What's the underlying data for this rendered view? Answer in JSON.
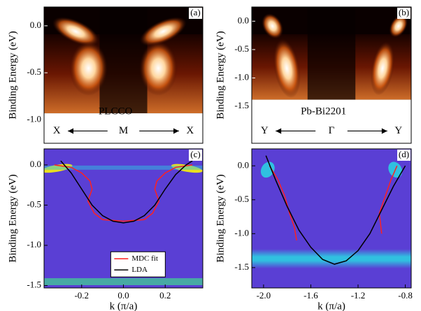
{
  "chart_data": [
    {
      "type": "heatmap",
      "panel_label": "(a)",
      "sample": "PLCCO",
      "ylabel": "Binding Energy (eV)",
      "symmetry_labels": [
        "X",
        "M",
        "X"
      ],
      "ylim": [
        -1.25,
        0.2
      ],
      "yticks": [
        {
          "value": 0,
          "label": "0.0"
        },
        -0.5,
        {
          "value": -1,
          "label": "-1.0"
        }
      ]
    },
    {
      "type": "heatmap",
      "panel_label": "(b)",
      "sample": "Pb-Bi2201",
      "ylabel": "Binding Energy (eV)",
      "symmetry_labels": [
        "Y",
        "Γ",
        "Y"
      ],
      "ylim": [
        -2.15,
        0.25
      ],
      "yticks": [
        {
          "value": 0,
          "label": "0.0"
        },
        -0.5,
        {
          "value": -1,
          "label": "-1.0"
        },
        -1.5
      ]
    },
    {
      "type": "line",
      "panel_label": "(c)",
      "ylabel": "Binding Energy (eV)",
      "xlabel": "k (π/a)",
      "xlim": [
        -0.38,
        0.38
      ],
      "xticks": [
        -0.2,
        {
          "value": 0,
          "label": "0.0"
        },
        0.2
      ],
      "ylim": [
        -1.53,
        0.2
      ],
      "yticks": [
        {
          "value": 0,
          "label": "0.0"
        },
        -0.5,
        {
          "value": -1,
          "label": "-1.0"
        },
        -1.5
      ],
      "series": [
        {
          "name": "MDC fit",
          "color": "#ff2020",
          "x": [
            -0.33,
            -0.25,
            -0.2,
            -0.16,
            -0.15,
            -0.17,
            -0.14,
            -0.1,
            0,
            0.1,
            0.14,
            0.17,
            0.15,
            0.16,
            0.2,
            0.25,
            0.33
          ],
          "values": [
            0.0,
            -0.03,
            -0.1,
            -0.2,
            -0.3,
            -0.45,
            -0.6,
            -0.68,
            -0.7,
            -0.68,
            -0.6,
            -0.45,
            -0.3,
            -0.2,
            -0.1,
            -0.03,
            0.0
          ]
        },
        {
          "name": "LDA",
          "color": "#000000",
          "x": [
            -0.3,
            -0.25,
            -0.2,
            -0.15,
            -0.1,
            -0.05,
            0,
            0.05,
            0.1,
            0.15,
            0.2,
            0.25,
            0.3,
            0.33
          ],
          "values": [
            0.05,
            -0.1,
            -0.3,
            -0.5,
            -0.63,
            -0.7,
            -0.72,
            -0.7,
            -0.63,
            -0.5,
            -0.3,
            -0.12,
            0.0,
            0.05
          ]
        }
      ]
    },
    {
      "type": "line",
      "panel_label": "(d)",
      "ylabel": "Binding Energy (eV)",
      "xlabel": "k (π/a)",
      "xlim": [
        -2.1,
        -0.75
      ],
      "xticks": [
        {
          "value": -2,
          "label": "-2.0"
        },
        -1.6,
        -1.2,
        -0.8
      ],
      "ylim": [
        -1.8,
        0.25
      ],
      "yticks": [
        {
          "value": 0,
          "label": "0.0"
        },
        -0.5,
        {
          "value": -1,
          "label": "-1.0"
        },
        -1.5
      ],
      "series": [
        {
          "name": "MDC fit",
          "color": "#ff2020",
          "x": [
            -1.95,
            -1.88,
            -1.82,
            -1.78,
            -1.74,
            -1.72,
            null,
            -1.0,
            -1.02,
            -0.97,
            -0.92,
            -0.87
          ],
          "values": [
            0.0,
            -0.2,
            -0.45,
            -0.7,
            -0.9,
            -1.1,
            null,
            -1.0,
            -0.7,
            -0.45,
            -0.2,
            0.0
          ]
        },
        {
          "name": "LDA",
          "color": "#000000",
          "x": [
            -1.98,
            -1.9,
            -1.8,
            -1.7,
            -1.6,
            -1.5,
            -1.4,
            -1.3,
            -1.2,
            -1.1,
            -1.0,
            -0.9,
            -0.8
          ],
          "values": [
            0.15,
            -0.2,
            -0.6,
            -0.95,
            -1.2,
            -1.38,
            -1.45,
            -1.4,
            -1.25,
            -1.0,
            -0.65,
            -0.3,
            0.0
          ]
        }
      ]
    }
  ]
}
